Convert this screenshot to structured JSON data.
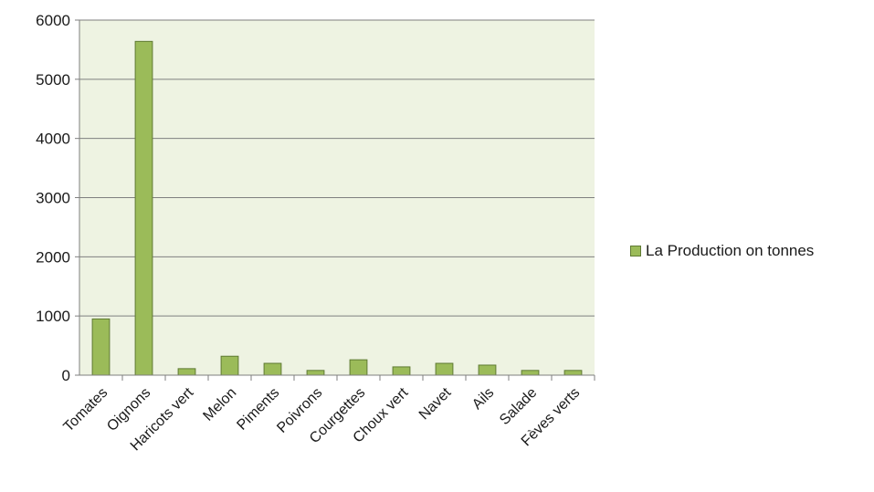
{
  "chart_data": {
    "type": "bar",
    "categories": [
      "Tomates",
      "Oignons",
      "Haricots vert",
      "Melon",
      "Piments",
      "Poivrons",
      "Courgettes",
      "Choux vert",
      "Navet",
      "Ails",
      "Salade",
      "Fèves verts"
    ],
    "series": [
      {
        "name": "La Production on tonnes",
        "values": [
          950,
          5640,
          110,
          320,
          200,
          80,
          260,
          140,
          200,
          170,
          80,
          80
        ]
      }
    ],
    "title": "",
    "xlabel": "",
    "ylabel": "",
    "ylim": [
      0,
      6000
    ],
    "yticks": [
      0,
      1000,
      2000,
      3000,
      4000,
      5000,
      6000
    ],
    "grid": true,
    "legend_position": "right",
    "colors": {
      "bar_fill": "#9bbb59",
      "bar_stroke": "#5f7a33",
      "plot_background": "#eef3e2",
      "gridline": "#7f7f7f"
    }
  }
}
